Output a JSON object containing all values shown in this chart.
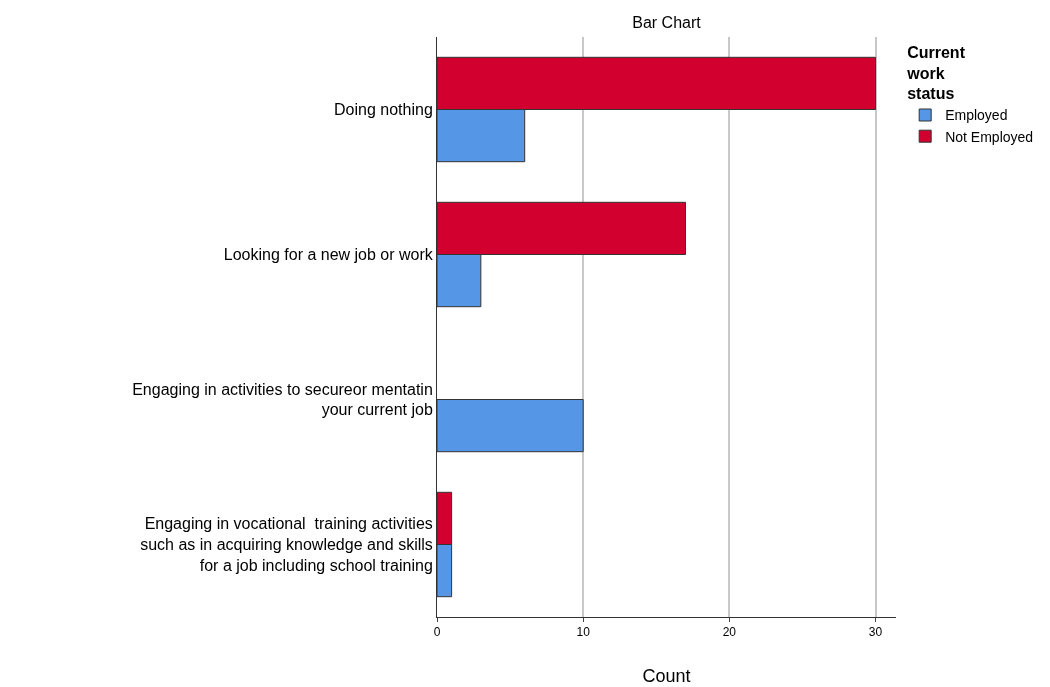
{
  "chart_data": {
    "type": "bar",
    "orientation": "horizontal",
    "title": "Bar Chart",
    "xlabel": "Count",
    "legend_title": "Current work status",
    "categories": [
      "Doing nothing",
      "Looking for a new job or work",
      "Engaging in activities to secureor mentatin your current job",
      "Engaging in vocational  training activities such as in acquiring knowledge and skills for a job including school training"
    ],
    "series": [
      {
        "name": "Employed",
        "color": "#5596e6",
        "values": [
          6,
          3,
          10,
          1
        ]
      },
      {
        "name": "Not Employed",
        "color": "#d1002f",
        "values": [
          30,
          17,
          null,
          1
        ]
      }
    ],
    "xlim": [
      0,
      31.4
    ],
    "xticks": [
      0,
      10,
      20,
      30
    ],
    "grid": "x",
    "legend": "top right"
  }
}
